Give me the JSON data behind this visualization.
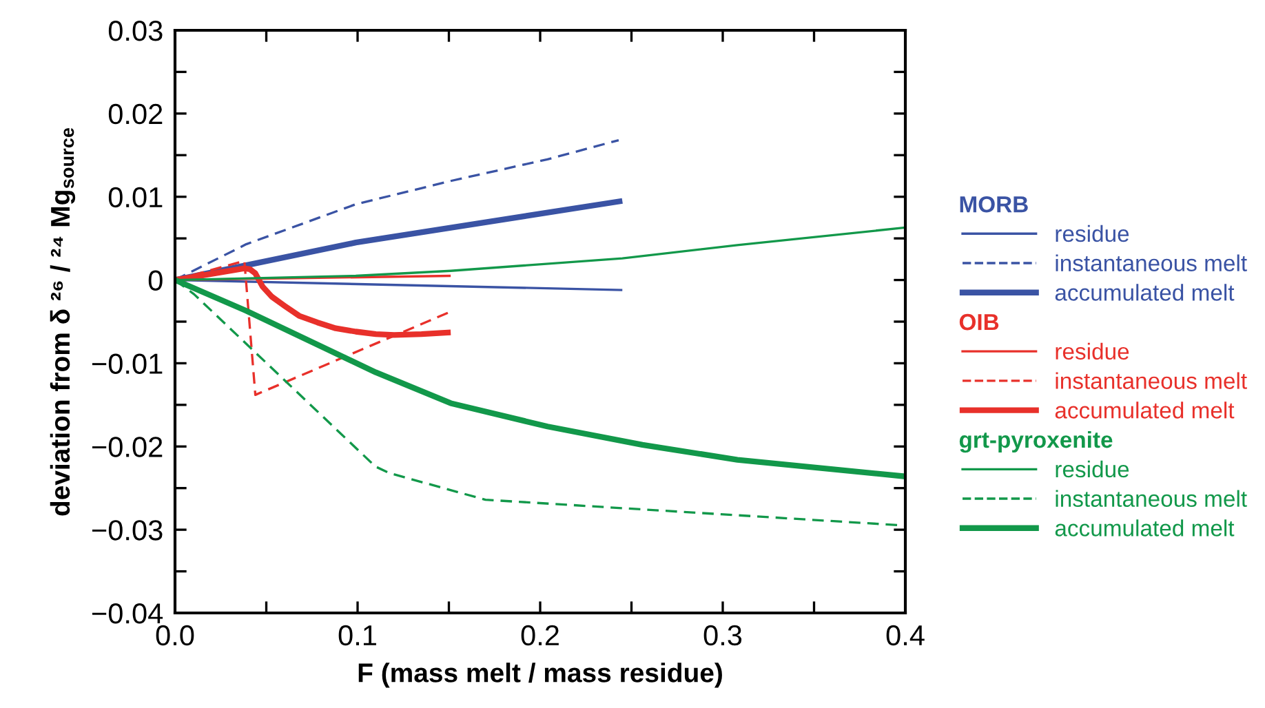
{
  "chart_data": {
    "type": "line",
    "xlabel": "F (mass melt / mass residue)",
    "ylabel": "deviation from δ ²⁶ / ²⁴ Mg$_{source}$",
    "annotations": [
      "MORB",
      "OIB",
      "grt-pyroxenite"
    ],
    "xlim": [
      0,
      0.4
    ],
    "ylim": [
      -0.04,
      0.03
    ],
    "xticks": [
      {
        "value": 0,
        "label": "0.0"
      },
      {
        "value": 0.05,
        "label": null
      },
      0.1,
      {
        "value": 0.15,
        "label": null
      },
      0.2,
      {
        "value": 0.25,
        "label": null
      },
      0.3,
      {
        "value": 0.35,
        "label": null
      },
      0.4
    ],
    "yticks": [
      {
        "value": -0.04,
        "label": "−0.04"
      },
      {
        "value": -0.035,
        "label": null
      },
      {
        "value": -0.03,
        "label": "−0.03"
      },
      {
        "value": -0.025,
        "label": null
      },
      {
        "value": -0.02,
        "label": "−0.02"
      },
      {
        "value": -0.015,
        "label": null
      },
      {
        "value": -0.01,
        "label": "−0.01"
      },
      {
        "value": -0.005,
        "label": null
      },
      0,
      {
        "value": 0.005,
        "label": null
      },
      0.01,
      {
        "value": 0.015,
        "label": null
      },
      0.02,
      {
        "value": 0.025,
        "label": null
      },
      0.03
    ],
    "grid": false,
    "legend": "right",
    "marker": "none",
    "series": [
      {
        "name": "residue",
        "color": "#3a53a4",
        "line_style": "solid",
        "x": [
          0,
          0.245
        ],
        "values": [
          0,
          -0.0012
        ]
      },
      {
        "name": "instantaneous melt",
        "color": "#3a53a4",
        "line_style": "dashed",
        "x": [
          0,
          0.039,
          0.099,
          0.151,
          0.204,
          0.243
        ],
        "values": [
          0,
          0.0043,
          0.0091,
          0.0119,
          0.0145,
          0.0168
        ]
      },
      {
        "name": "accumulated melt",
        "color": "#3a53a4",
        "line_style": "solid",
        "x": [
          0,
          0.099,
          0.245
        ],
        "values": [
          0,
          0.0045,
          0.0095
        ]
      },
      {
        "name": "residue",
        "color": "#e8302a",
        "line_style": "solid",
        "x": [
          0,
          0.151
        ],
        "values": [
          0,
          0.0005
        ]
      },
      {
        "name": "instantaneous melt",
        "color": "#e8302a",
        "line_style": "dashed",
        "x": [
          0,
          0.038,
          0.044,
          0.151
        ],
        "values": [
          0,
          0.0023,
          -0.0138,
          -0.0038
        ]
      },
      {
        "name": "accumulated melt",
        "color": "#e8302a",
        "line_style": "solid",
        "x": [
          0,
          0.038,
          0.041,
          0.044,
          0.048,
          0.053,
          0.06,
          0.068,
          0.078,
          0.088,
          0.099,
          0.11,
          0.12,
          0.135,
          0.151
        ],
        "values": [
          0,
          0.0014,
          0.0013,
          0.0008,
          -0.0008,
          -0.002,
          -0.0031,
          -0.0043,
          -0.0051,
          -0.0058,
          -0.0062,
          -0.0065,
          -0.0066,
          -0.0065,
          -0.0063
        ]
      },
      {
        "name": "residue",
        "color": "#12984a",
        "line_style": "solid",
        "x": [
          0,
          0.099,
          0.151,
          0.245,
          0.308,
          0.4
        ],
        "values": [
          0,
          0.0005,
          0.0011,
          0.0026,
          0.0042,
          0.0063
        ]
      },
      {
        "name": "instantaneous melt",
        "color": "#12984a",
        "line_style": "dashed",
        "x": [
          0,
          0.0104,
          0.1097,
          0.1175,
          0.17,
          0.4
        ],
        "values": [
          0,
          -0.0017,
          -0.0224,
          -0.0232,
          -0.0264,
          -0.0295
        ]
      },
      {
        "name": "accumulated melt",
        "color": "#12984a",
        "line_style": "solid",
        "x": [
          0,
          0.039,
          0.11,
          0.151,
          0.204,
          0.256,
          0.308,
          0.4
        ],
        "values": [
          0,
          -0.0037,
          -0.0111,
          -0.0148,
          -0.0176,
          -0.0198,
          -0.0216,
          -0.0236
        ]
      }
    ]
  }
}
